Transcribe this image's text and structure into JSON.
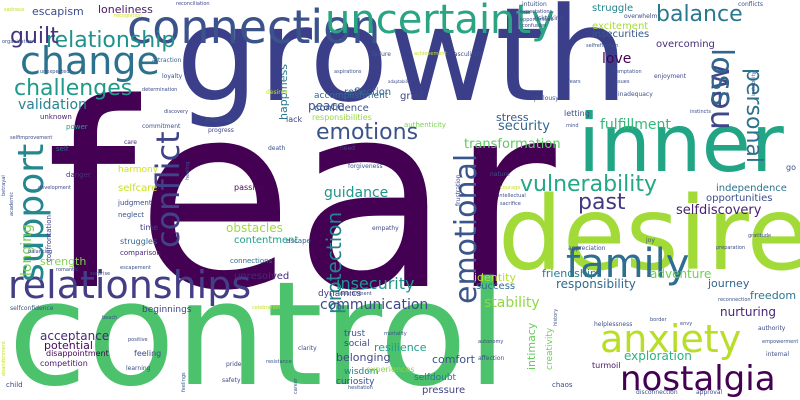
{
  "words": [
    {
      "text": "fear",
      "color": "#440154"
    },
    {
      "text": "growth",
      "color": "#3b3f8a"
    },
    {
      "text": "control",
      "color": "#4cc26c"
    },
    {
      "text": "desire",
      "color": "#a2da37"
    },
    {
      "text": "inner",
      "color": "#21a585"
    },
    {
      "text": "connection",
      "color": "#3b528b"
    },
    {
      "text": "relationships",
      "color": "#433e85"
    },
    {
      "text": "uncertainty",
      "color": "#2aa483"
    },
    {
      "text": "change",
      "color": "#2c728e"
    },
    {
      "text": "nostalgia",
      "color": "#440154"
    },
    {
      "text": "emotional",
      "color": "#39558c"
    },
    {
      "text": "anxiety",
      "color": "#b8de29"
    },
    {
      "text": "family",
      "color": "#2e6e8e"
    },
    {
      "text": "support",
      "color": "#24878e"
    },
    {
      "text": "conflict",
      "color": "#404387"
    },
    {
      "text": "new",
      "color": "#3f4788"
    },
    {
      "text": "loss",
      "color": "#32658e"
    },
    {
      "text": "relationship",
      "color": "#21918c"
    },
    {
      "text": "balance",
      "color": "#2a788e"
    },
    {
      "text": "challenges",
      "color": "#1f9a8a"
    },
    {
      "text": "guilt",
      "color": "#46327e"
    },
    {
      "text": "vulnerability",
      "color": "#22a884"
    },
    {
      "text": "protection",
      "color": "#26828e"
    },
    {
      "text": "personal",
      "color": "#2d708e"
    },
    {
      "text": "emotions",
      "color": "#3b528b"
    },
    {
      "text": "past",
      "color": "#453781"
    },
    {
      "text": "insecurity",
      "color": "#1f968b"
    },
    {
      "text": "fulfillment",
      "color": "#35b779"
    },
    {
      "text": "stability",
      "color": "#90d743"
    },
    {
      "text": "communication",
      "color": "#3e4989"
    },
    {
      "text": "selfdiscovery",
      "color": "#482173"
    },
    {
      "text": "validation",
      "color": "#25858e"
    },
    {
      "text": "love",
      "color": "#440154"
    },
    {
      "text": "guidance",
      "color": "#1f968b"
    },
    {
      "text": "transformation",
      "color": "#5ec962"
    },
    {
      "text": "security",
      "color": "#31688e"
    },
    {
      "text": "escapism",
      "color": "#3e4a89"
    },
    {
      "text": "loneliness",
      "color": "#481668"
    },
    {
      "text": "peace",
      "color": "#3b528b"
    },
    {
      "text": "happiness",
      "color": "#29798e"
    },
    {
      "text": "longing",
      "color": "#7ad151"
    },
    {
      "text": "obstacles",
      "color": "#9fda3a"
    },
    {
      "text": "acceptance",
      "color": "#482878"
    },
    {
      "text": "potential",
      "color": "#46085c"
    },
    {
      "text": "adventure",
      "color": "#6ece58"
    },
    {
      "text": "friendship",
      "color": "#287c8e"
    },
    {
      "text": "responsibility",
      "color": "#31688e"
    },
    {
      "text": "exploration",
      "color": "#2db27d"
    },
    {
      "text": "nurturing",
      "color": "#482475"
    },
    {
      "text": "journey",
      "color": "#33638d"
    },
    {
      "text": "intimacy",
      "color": "#65cb5e"
    },
    {
      "text": "resilience",
      "color": "#1f9e89"
    },
    {
      "text": "comfort",
      "color": "#3a538b"
    },
    {
      "text": "belonging",
      "color": "#3f4889"
    },
    {
      "text": "identity",
      "color": "#b5de2b"
    },
    {
      "text": "success",
      "color": "#2e6f8e"
    },
    {
      "text": "freedom",
      "color": "#2a778e"
    },
    {
      "text": "stress",
      "color": "#37598c"
    },
    {
      "text": "strength",
      "color": "#7fd34e"
    },
    {
      "text": "selfcare",
      "color": "#c8e020"
    },
    {
      "text": "independence",
      "color": "#2c738e"
    },
    {
      "text": "opportunities",
      "color": "#3c4f8a"
    },
    {
      "text": "struggle",
      "color": "#24878e"
    },
    {
      "text": "insecurities",
      "color": "#38588c"
    },
    {
      "text": "excitement",
      "color": "#a8db34"
    },
    {
      "text": "overcoming",
      "color": "#472e7c"
    },
    {
      "text": "reflection",
      "color": "#34618d"
    },
    {
      "text": "confidence",
      "color": "#3b528b"
    },
    {
      "text": "accomplishment",
      "color": "#2e6d8e"
    },
    {
      "text": "grief",
      "color": "#404688"
    },
    {
      "text": "contentment",
      "color": "#1f9e89"
    },
    {
      "text": "dynamics",
      "color": "#443a83"
    },
    {
      "text": "unresolved",
      "color": "#482979"
    },
    {
      "text": "harmony",
      "color": "#d0e11c"
    },
    {
      "text": "creativity",
      "color": "#6ece58"
    },
    {
      "text": "selfdoubt",
      "color": "#2b758e"
    },
    {
      "text": "pressure",
      "color": "#414487"
    },
    {
      "text": "wisdom",
      "color": "#287d8e"
    },
    {
      "text": "curiosity",
      "color": "#3c4f8a"
    },
    {
      "text": "trust",
      "color": "#39568c"
    },
    {
      "text": "social",
      "color": "#3e4a89"
    },
    {
      "text": "beginnings",
      "color": "#414487"
    },
    {
      "text": "disappointment",
      "color": "#440154"
    },
    {
      "text": "competition",
      "color": "#481a6c"
    },
    {
      "text": "feeling",
      "color": "#3e4a89"
    },
    {
      "text": "experiences",
      "color": "#8bd646"
    },
    {
      "text": "turmoil",
      "color": "#471365"
    },
    {
      "text": "lack",
      "color": "#3f4788"
    },
    {
      "text": "responsibilities",
      "color": "#95d840"
    },
    {
      "text": "authenticity",
      "color": "#7ad151"
    },
    {
      "text": "letting",
      "color": "#3b528b"
    },
    {
      "text": "go",
      "color": "#3b528b"
    },
    {
      "text": "passion",
      "color": "#46085c"
    },
    {
      "text": "time",
      "color": "#443a83"
    },
    {
      "text": "struggles",
      "color": "#31688e"
    },
    {
      "text": "comparison",
      "color": "#482979"
    },
    {
      "text": "connections",
      "color": "#2f6c8e"
    },
    {
      "text": "escape",
      "color": "#33638d"
    },
    {
      "text": "judgment",
      "color": "#3d4d8a"
    },
    {
      "text": "neglect",
      "color": "#3b528b"
    },
    {
      "text": "danger",
      "color": "#46327e"
    },
    {
      "text": "confrontation",
      "color": "#404387"
    },
    {
      "text": "unknown",
      "color": "#482576"
    },
    {
      "text": "power",
      "color": "#1fa188"
    },
    {
      "text": "self",
      "color": "#2c728e"
    },
    {
      "text": "commitment",
      "color": "#3b528b"
    },
    {
      "text": "care",
      "color": "#482475"
    },
    {
      "text": "financial",
      "color": "#3b528b"
    },
    {
      "text": "progress",
      "color": "#414487"
    },
    {
      "text": "determination",
      "color": "#3e4a89"
    },
    {
      "text": "attraction",
      "color": "#31688e"
    },
    {
      "text": "loyalty",
      "color": "#3b528b"
    },
    {
      "text": "unexpected",
      "color": "#3b528b"
    },
    {
      "text": "selfimprovement",
      "color": "#3e4a89"
    },
    {
      "text": "organization",
      "color": "#3b528b"
    },
    {
      "text": "recognition",
      "color": "#d2e21b"
    },
    {
      "text": "sadness",
      "color": "#c2df23"
    },
    {
      "text": "reconciliation",
      "color": "#3e4a89"
    },
    {
      "text": "failure",
      "color": "#3b528b"
    },
    {
      "text": "masculinity",
      "color": "#3e4a89"
    },
    {
      "text": "intuition",
      "color": "#3b528b"
    },
    {
      "text": "expectations",
      "color": "#3e4a89"
    },
    {
      "text": "opportunities",
      "color": "#3b528b"
    },
    {
      "text": "risktaking",
      "color": "#3e4a89"
    },
    {
      "text": "confusion",
      "color": "#3e4a89"
    },
    {
      "text": "overwhelm",
      "color": "#3e4a89"
    },
    {
      "text": "conflicts",
      "color": "#3b528b"
    },
    {
      "text": "achievement",
      "color": "#c8e020"
    },
    {
      "text": "selfreflection",
      "color": "#3b528b"
    },
    {
      "text": "temptation",
      "color": "#3b528b"
    },
    {
      "text": "enjoyment",
      "color": "#3e4a89"
    },
    {
      "text": "inadequacy",
      "color": "#3b528b"
    },
    {
      "text": "jealousy",
      "color": "#3e4a89"
    },
    {
      "text": "aspirations",
      "color": "#3b528b"
    },
    {
      "text": "adaptability",
      "color": "#3e4a89"
    },
    {
      "text": "desires",
      "color": "#c8e020"
    },
    {
      "text": "discovery",
      "color": "#3e4a89"
    },
    {
      "text": "death",
      "color": "#3b528b"
    },
    {
      "text": "need",
      "color": "#3e4a89"
    },
    {
      "text": "forgiveness",
      "color": "#3b528b"
    },
    {
      "text": "nature",
      "color": "#3b528b"
    },
    {
      "text": "frustration",
      "color": "#3e4a89"
    },
    {
      "text": "courage",
      "color": "#c8e020"
    },
    {
      "text": "intellectual",
      "color": "#3b528b"
    },
    {
      "text": "sacrifice",
      "color": "#3e4a89"
    },
    {
      "text": "empathy",
      "color": "#3e4a89"
    },
    {
      "text": "appreciation",
      "color": "#3b528b"
    },
    {
      "text": "joy",
      "color": "#3b528b"
    },
    {
      "text": "preparation",
      "color": "#3e4a89"
    },
    {
      "text": "reconnection",
      "color": "#3b528b"
    },
    {
      "text": "betrayal",
      "color": "#3b528b"
    },
    {
      "text": "academic",
      "color": "#3b528b"
    },
    {
      "text": "development",
      "color": "#3e4a89"
    },
    {
      "text": "healing",
      "color": "#3b528b"
    },
    {
      "text": "romantic",
      "color": "#3e4a89"
    },
    {
      "text": "balancing",
      "color": "#3b528b"
    },
    {
      "text": "escapement",
      "color": "#3b528b"
    },
    {
      "text": "selfconfidence",
      "color": "#3b528b"
    },
    {
      "text": "nourishment",
      "color": "#3e4a89"
    },
    {
      "text": "celebration",
      "color": "#c8e020"
    },
    {
      "text": "history",
      "color": "#3b528b"
    },
    {
      "text": "envy",
      "color": "#3b528b"
    },
    {
      "text": "helplessness",
      "color": "#3b528b"
    },
    {
      "text": "authority",
      "color": "#3e4a89"
    },
    {
      "text": "empowerment",
      "color": "#3b528b"
    },
    {
      "text": "internal",
      "color": "#3e4a89"
    },
    {
      "text": "career",
      "color": "#3b528b"
    },
    {
      "text": "safety",
      "color": "#3e4a89"
    },
    {
      "text": "learning",
      "color": "#3e4a89"
    },
    {
      "text": "feelings",
      "color": "#3b528b"
    },
    {
      "text": "positive",
      "color": "#3e4a89"
    },
    {
      "text": "beach",
      "color": "#3b528b"
    },
    {
      "text": "child",
      "color": "#3e4a89"
    },
    {
      "text": "mortality",
      "color": "#3b528b"
    },
    {
      "text": "clarity",
      "color": "#3e4a89"
    },
    {
      "text": "resistance",
      "color": "#3b528b"
    },
    {
      "text": "pride",
      "color": "#3e4a89"
    },
    {
      "text": "affection",
      "color": "#3b528b"
    },
    {
      "text": "autonomy",
      "color": "#3e4a89"
    },
    {
      "text": "chaos",
      "color": "#3e4a89"
    },
    {
      "text": "disconnection",
      "color": "#3b528b"
    },
    {
      "text": "approval",
      "color": "#3e4a89"
    },
    {
      "text": "hesitation",
      "color": "#3b528b"
    },
    {
      "text": "instability",
      "color": "#3b528b"
    },
    {
      "text": "instincts",
      "color": "#3e4a89"
    },
    {
      "text": "fears",
      "color": "#3b528b"
    },
    {
      "text": "issues",
      "color": "#3e4a89"
    },
    {
      "text": "mind",
      "color": "#3b528b"
    },
    {
      "text": "abandonment",
      "color": "#c8e020"
    },
    {
      "text": "border",
      "color": "#3b528b"
    },
    {
      "text": "surprise",
      "color": "#3b528b"
    },
    {
      "text": "gratitude",
      "color": "#3e4a89"
    }
  ]
}
